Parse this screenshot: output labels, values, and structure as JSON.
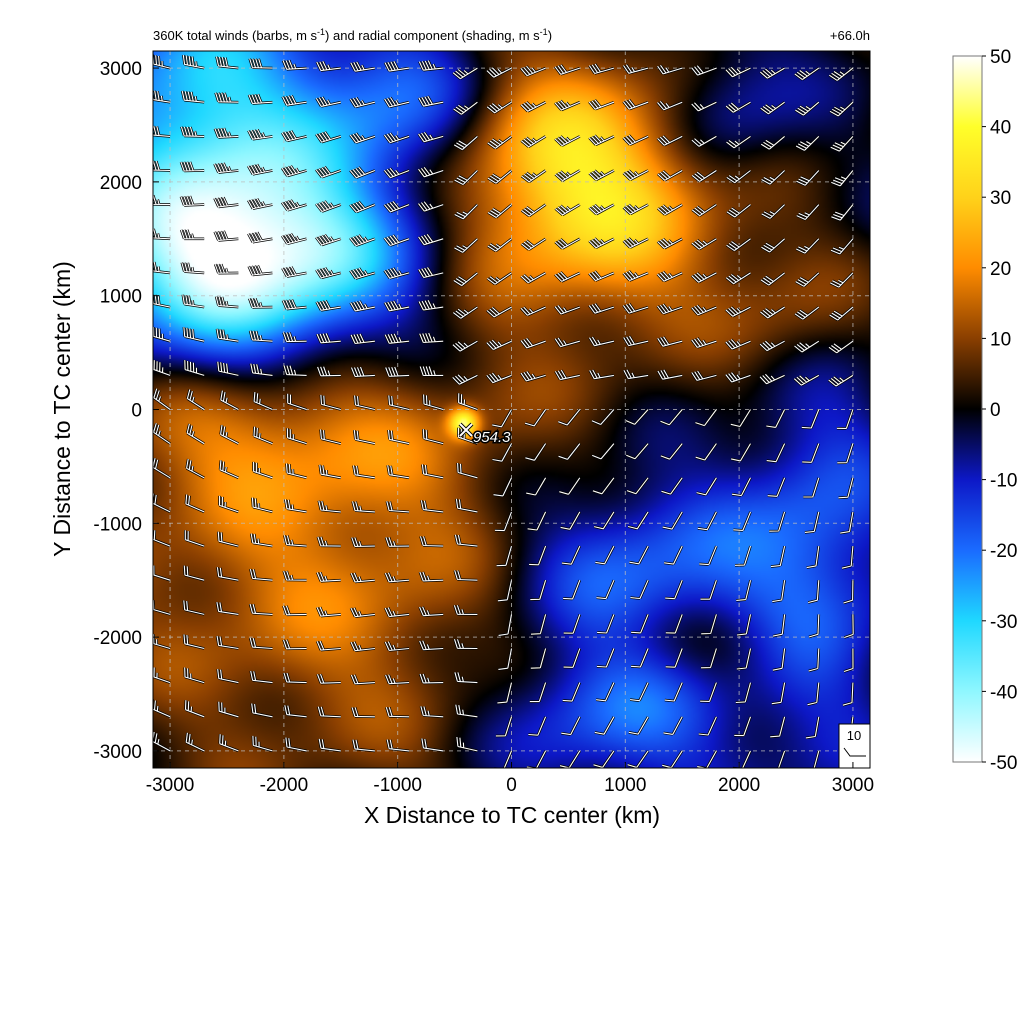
{
  "figure": {
    "title_left": "360K total winds (barbs, m s",
    "title_left_sup1": "-1",
    "title_left_mid": ") and radial component (shading, m s",
    "title_left_sup2": "-1",
    "title_left_end": ")",
    "title_right": "+66.0h",
    "center_label": "954.3",
    "reference_barb_label": "10"
  },
  "chart_data": {
    "type": "heatmap",
    "title": "360K total winds (barbs, m s-1) and radial component (shading, m s-1)",
    "time_label": "+66.0h",
    "xlabel": "X Distance to TC center (km)",
    "ylabel": "Y Distance to TC center (km)",
    "xlim": [
      -3150,
      3150
    ],
    "ylim": [
      -3150,
      3150
    ],
    "x_ticks": [
      -3000,
      -2000,
      -1000,
      0,
      1000,
      2000,
      3000
    ],
    "y_ticks": [
      -3000,
      -2000,
      -1000,
      0,
      1000,
      2000,
      3000
    ],
    "x_tick_labels": [
      "-3000",
      "-2000",
      "-1000",
      "0",
      "1000",
      "2000",
      "3000"
    ],
    "y_tick_labels": [
      "-3000",
      "-2000",
      "-1000",
      "0",
      "1000",
      "2000",
      "3000"
    ],
    "grid": true,
    "colorbar": {
      "min": -50,
      "max": 50,
      "ticks": [
        50,
        40,
        30,
        20,
        10,
        0,
        -10,
        -20,
        -30,
        -40,
        -50
      ],
      "tick_labels": [
        "50",
        "40",
        "30",
        "20",
        "10",
        "0",
        "-10",
        "-20",
        "-30",
        "-40",
        "-50"
      ],
      "stops": [
        {
          "value": -50,
          "color": "#ffffff"
        },
        {
          "value": -40,
          "color": "#8ff7ff"
        },
        {
          "value": -30,
          "color": "#1fd8ff"
        },
        {
          "value": -20,
          "color": "#1a6bff"
        },
        {
          "value": -10,
          "color": "#0d18c7"
        },
        {
          "value": 0,
          "color": "#000000"
        },
        {
          "value": 10,
          "color": "#8a3f00"
        },
        {
          "value": 20,
          "color": "#ff8c00"
        },
        {
          "value": 30,
          "color": "#ffd21a"
        },
        {
          "value": 40,
          "color": "#ffff2a"
        },
        {
          "value": 50,
          "color": "#ffffff"
        }
      ]
    },
    "field_sources": [
      {
        "x": -2300,
        "y": 1350,
        "sx": 1000,
        "sy": 650,
        "amp": -55
      },
      {
        "x": -2700,
        "y": 2800,
        "sx": 700,
        "sy": 700,
        "amp": -28
      },
      {
        "x": -1000,
        "y": 2700,
        "sx": 600,
        "sy": 500,
        "amp": -20
      },
      {
        "x": 700,
        "y": 1800,
        "sx": 900,
        "sy": 700,
        "amp": 30
      },
      {
        "x": 400,
        "y": 2500,
        "sx": 700,
        "sy": 600,
        "amp": 12
      },
      {
        "x": 2500,
        "y": 800,
        "sx": 500,
        "sy": 500,
        "amp": 12
      },
      {
        "x": 1900,
        "y": 2600,
        "sx": 450,
        "sy": 500,
        "amp": -14
      },
      {
        "x": -1500,
        "y": -1200,
        "sx": 1500,
        "sy": 1400,
        "amp": 18
      },
      {
        "x": -2200,
        "y": -200,
        "sx": 900,
        "sy": 400,
        "amp": 10
      },
      {
        "x": 1100,
        "y": -1400,
        "sx": 900,
        "sy": 600,
        "amp": -22
      },
      {
        "x": 900,
        "y": -2700,
        "sx": 800,
        "sy": 500,
        "amp": -20
      },
      {
        "x": 2700,
        "y": -1200,
        "sx": 500,
        "sy": 1400,
        "amp": -16
      },
      {
        "x": 1700,
        "y": -2100,
        "sx": 600,
        "sy": 300,
        "amp": 10
      },
      {
        "x": -420,
        "y": -120,
        "sx": 90,
        "sy": 90,
        "amp": 35
      }
    ],
    "tc_center": {
      "x": -400,
      "y": -180,
      "pressure_label": "954.3"
    },
    "wind_regions": [
      {
        "region": "upper-left",
        "direction_deg": 270,
        "speed_ms": 45
      },
      {
        "region": "upper-right",
        "direction_deg": 240,
        "speed_ms": 35
      },
      {
        "region": "lower-left",
        "direction_deg": 285,
        "speed_ms": 25
      },
      {
        "region": "lower-right",
        "direction_deg": 200,
        "speed_ms": 12
      }
    ],
    "reference_barb": {
      "speed_ms": 10,
      "label": "10"
    }
  }
}
